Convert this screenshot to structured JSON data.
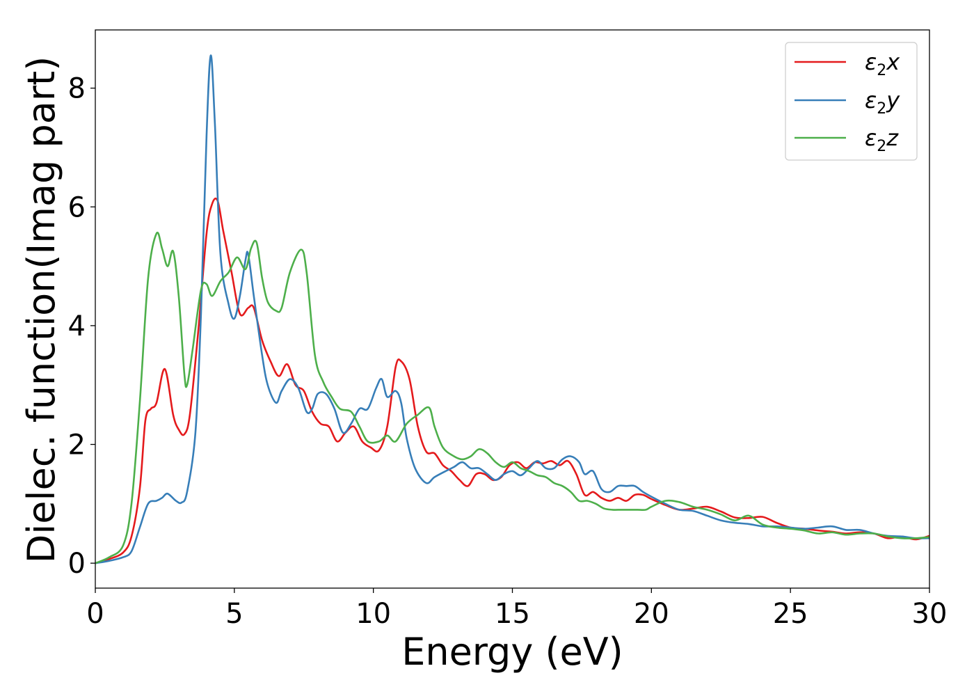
{
  "chart_data": {
    "type": "line",
    "title": "",
    "xlabel": "Energy (eV)",
    "ylabel": "Dielec. function(Imag part)",
    "xlim": [
      0,
      30
    ],
    "ylim": [
      -0.42,
      8.98
    ],
    "xticks": [
      0,
      5,
      10,
      15,
      20,
      25,
      30
    ],
    "yticks": [
      0,
      2,
      4,
      6,
      8
    ],
    "grid": false,
    "legend_position": "top-right",
    "series": [
      {
        "name": "ε2x",
        "legend_base": "ε",
        "legend_sub": "2",
        "legend_suffix": "x",
        "color": "#e41a1c",
        "x": [
          0,
          0.5,
          1.0,
          1.3,
          1.6,
          1.8,
          2.0,
          2.2,
          2.5,
          2.8,
          3.0,
          3.2,
          3.4,
          3.7,
          4.0,
          4.2,
          4.4,
          4.6,
          4.9,
          5.2,
          5.5,
          5.7,
          6.0,
          6.3,
          6.6,
          6.9,
          7.2,
          7.5,
          7.8,
          8.1,
          8.4,
          8.7,
          9.0,
          9.3,
          9.6,
          9.9,
          10.2,
          10.5,
          10.8,
          11.0,
          11.3,
          11.6,
          11.9,
          12.2,
          12.5,
          12.8,
          13.1,
          13.4,
          13.7,
          14.0,
          14.3,
          14.6,
          14.9,
          15.2,
          15.5,
          15.8,
          16.1,
          16.4,
          16.7,
          17.0,
          17.3,
          17.6,
          17.9,
          18.2,
          18.5,
          18.8,
          19.1,
          19.4,
          19.7,
          20.0,
          20.5,
          21.0,
          21.5,
          22.0,
          22.5,
          23.0,
          23.5,
          24.0,
          24.5,
          25.0,
          25.5,
          26.0,
          26.5,
          27.0,
          27.5,
          28.0,
          28.5,
          29.0,
          29.5,
          30.0
        ],
        "y": [
          0,
          0.07,
          0.18,
          0.45,
          1.25,
          2.4,
          2.6,
          2.7,
          3.27,
          2.5,
          2.25,
          2.17,
          2.5,
          3.9,
          5.55,
          6.05,
          6.1,
          5.6,
          4.9,
          4.2,
          4.3,
          4.3,
          3.75,
          3.4,
          3.15,
          3.35,
          3.0,
          2.9,
          2.55,
          2.35,
          2.3,
          2.05,
          2.2,
          2.3,
          2.05,
          1.95,
          1.9,
          2.3,
          3.3,
          3.4,
          3.1,
          2.3,
          1.88,
          1.85,
          1.65,
          1.55,
          1.4,
          1.3,
          1.5,
          1.5,
          1.4,
          1.45,
          1.65,
          1.7,
          1.6,
          1.7,
          1.68,
          1.72,
          1.65,
          1.72,
          1.5,
          1.15,
          1.2,
          1.1,
          1.05,
          1.1,
          1.05,
          1.15,
          1.15,
          1.08,
          0.98,
          0.9,
          0.92,
          0.95,
          0.87,
          0.77,
          0.76,
          0.78,
          0.68,
          0.6,
          0.58,
          0.55,
          0.53,
          0.5,
          0.52,
          0.5,
          0.42,
          0.45,
          0.4,
          0.46
        ]
      },
      {
        "name": "ε2y",
        "legend_base": "ε",
        "legend_sub": "2",
        "legend_suffix": "y",
        "color": "#377eb8",
        "x": [
          0,
          0.5,
          1.0,
          1.3,
          1.6,
          1.9,
          2.2,
          2.4,
          2.6,
          2.9,
          3.1,
          3.3,
          3.6,
          3.8,
          4.0,
          4.15,
          4.3,
          4.5,
          4.8,
          5.0,
          5.2,
          5.4,
          5.5,
          5.7,
          6.0,
          6.2,
          6.5,
          6.7,
          7.0,
          7.3,
          7.6,
          7.8,
          8.0,
          8.3,
          8.6,
          8.9,
          9.2,
          9.5,
          9.8,
          10.1,
          10.3,
          10.5,
          10.8,
          11.0,
          11.2,
          11.5,
          11.9,
          12.2,
          12.6,
          12.9,
          13.2,
          13.5,
          13.8,
          14.1,
          14.4,
          14.7,
          15.0,
          15.3,
          15.6,
          15.9,
          16.2,
          16.5,
          16.8,
          17.1,
          17.4,
          17.6,
          17.9,
          18.2,
          18.5,
          18.8,
          19.1,
          19.4,
          19.7,
          20.0,
          20.5,
          21.0,
          21.5,
          22.0,
          22.5,
          23.0,
          23.5,
          24.0,
          24.5,
          25.0,
          25.5,
          26.0,
          26.5,
          27.0,
          27.5,
          28.0,
          28.5,
          29.0,
          29.5,
          30.0
        ],
        "y": [
          0,
          0.04,
          0.1,
          0.2,
          0.6,
          1.0,
          1.05,
          1.1,
          1.17,
          1.05,
          1.02,
          1.2,
          2.2,
          4.2,
          7.2,
          8.55,
          7.4,
          5.2,
          4.35,
          4.12,
          4.5,
          5.1,
          5.2,
          4.5,
          3.5,
          3.0,
          2.7,
          2.9,
          3.1,
          2.95,
          2.55,
          2.6,
          2.85,
          2.85,
          2.6,
          2.2,
          2.35,
          2.6,
          2.6,
          2.95,
          3.1,
          2.8,
          2.9,
          2.7,
          2.1,
          1.6,
          1.35,
          1.45,
          1.55,
          1.62,
          1.7,
          1.6,
          1.6,
          1.5,
          1.4,
          1.5,
          1.55,
          1.48,
          1.6,
          1.72,
          1.6,
          1.6,
          1.75,
          1.8,
          1.7,
          1.5,
          1.55,
          1.25,
          1.2,
          1.3,
          1.3,
          1.3,
          1.2,
          1.12,
          1.0,
          0.9,
          0.88,
          0.8,
          0.72,
          0.68,
          0.66,
          0.62,
          0.62,
          0.6,
          0.58,
          0.6,
          0.62,
          0.56,
          0.56,
          0.5,
          0.46,
          0.45,
          0.42,
          0.42
        ]
      },
      {
        "name": "ε2z",
        "legend_base": "ε",
        "legend_sub": "2",
        "legend_suffix": "z",
        "color": "#4daf4a",
        "x": [
          0,
          0.5,
          1.0,
          1.3,
          1.6,
          1.9,
          2.2,
          2.4,
          2.6,
          2.8,
          3.0,
          3.2,
          3.3,
          3.5,
          3.8,
          4.0,
          4.2,
          4.5,
          4.8,
          5.1,
          5.4,
          5.6,
          5.8,
          6.0,
          6.2,
          6.5,
          6.7,
          7.0,
          7.4,
          7.6,
          7.9,
          8.2,
          8.5,
          8.8,
          9.2,
          9.5,
          9.8,
          10.2,
          10.5,
          10.8,
          11.2,
          11.6,
          12.0,
          12.2,
          12.5,
          12.9,
          13.2,
          13.5,
          13.8,
          14.1,
          14.4,
          14.7,
          15.0,
          15.3,
          15.6,
          15.9,
          16.2,
          16.5,
          16.8,
          17.1,
          17.4,
          17.7,
          18.0,
          18.3,
          18.6,
          18.9,
          19.2,
          19.5,
          19.8,
          20.0,
          20.5,
          21.0,
          21.5,
          22.0,
          22.5,
          23.0,
          23.5,
          24.0,
          24.5,
          25.0,
          25.5,
          26.0,
          26.5,
          27.0,
          27.5,
          28.0,
          28.5,
          29.0,
          29.5,
          30.0
        ],
        "y": [
          0,
          0.1,
          0.3,
          1.0,
          2.7,
          4.8,
          5.55,
          5.3,
          5.0,
          5.25,
          4.5,
          3.2,
          3.0,
          3.6,
          4.6,
          4.7,
          4.5,
          4.75,
          4.9,
          5.15,
          4.95,
          5.3,
          5.4,
          4.8,
          4.4,
          4.25,
          4.3,
          4.9,
          5.28,
          4.9,
          3.5,
          3.05,
          2.8,
          2.6,
          2.55,
          2.3,
          2.05,
          2.05,
          2.15,
          2.05,
          2.35,
          2.5,
          2.62,
          2.3,
          1.95,
          1.8,
          1.75,
          1.8,
          1.92,
          1.85,
          1.7,
          1.62,
          1.7,
          1.6,
          1.55,
          1.48,
          1.45,
          1.35,
          1.3,
          1.2,
          1.05,
          1.05,
          1.0,
          0.92,
          0.9,
          0.9,
          0.9,
          0.9,
          0.9,
          0.95,
          1.05,
          1.03,
          0.95,
          0.9,
          0.82,
          0.72,
          0.8,
          0.65,
          0.6,
          0.58,
          0.55,
          0.5,
          0.52,
          0.48,
          0.5,
          0.5,
          0.45,
          0.42,
          0.42,
          0.44
        ]
      }
    ]
  }
}
